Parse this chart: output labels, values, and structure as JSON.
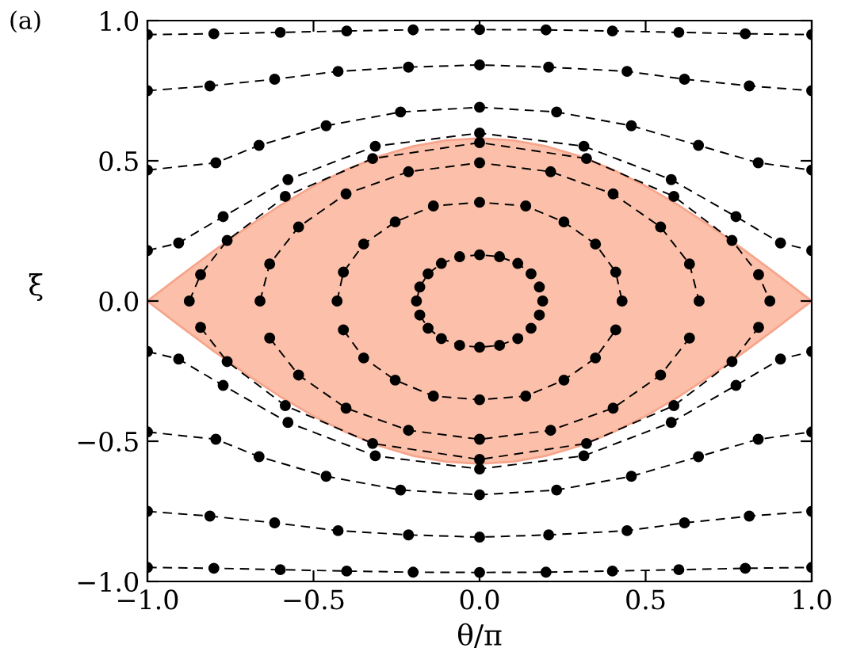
{
  "chart_data": {
    "type": "line",
    "xlabel": "θ/π",
    "ylabel": "ξ",
    "annotations": [
      "(a)"
    ],
    "xlim": [
      -1,
      1
    ],
    "ylim": [
      -1,
      1
    ],
    "xticks": [
      {
        "value": -1,
        "label": "−1.0"
      },
      {
        "value": -0.5,
        "label": "−0.5"
      },
      {
        "value": 0,
        "label": "0.0"
      },
      {
        "value": 0.5,
        "label": "0.5"
      },
      {
        "value": 1,
        "label": "1.0"
      }
    ],
    "yticks": [
      {
        "value": -1,
        "label": "−1.0"
      },
      {
        "value": -0.5,
        "label": "−0.5"
      },
      {
        "value": 0,
        "label": "0.0"
      },
      {
        "value": 0.5,
        "label": "0.5"
      },
      {
        "value": 1,
        "label": "1.0"
      }
    ],
    "grid": false,
    "legend": false,
    "marker": "circle",
    "line_style": "dashed",
    "series": [
      {
        "type": "area",
        "marker": "none",
        "line_style": "solid",
        "color": "#fcc0aa",
        "x": [
          -1,
          -0.9,
          -0.8,
          -0.7,
          -0.6,
          -0.5,
          -0.4,
          -0.3,
          -0.2,
          -0.1,
          0,
          0.1,
          0.2,
          0.3,
          0.4,
          0.5,
          0.6,
          0.7,
          0.8,
          0.9,
          1
        ],
        "values": [
          0,
          0.091,
          0.179,
          0.263,
          0.341,
          0.41,
          0.469,
          0.517,
          0.552,
          0.573,
          0.58,
          0.573,
          0.552,
          0.517,
          0.469,
          0.41,
          0.341,
          0.263,
          0.179,
          0.091,
          0
        ]
      },
      {
        "type": "area",
        "marker": "none",
        "line_style": "solid",
        "color": "#fcc0aa",
        "x": [
          -1,
          -0.9,
          -0.8,
          -0.7,
          -0.6,
          -0.5,
          -0.4,
          -0.3,
          -0.2,
          -0.1,
          0,
          0.1,
          0.2,
          0.3,
          0.4,
          0.5,
          0.6,
          0.7,
          0.8,
          0.9,
          1
        ],
        "values": [
          0,
          -0.091,
          -0.179,
          -0.263,
          -0.341,
          -0.41,
          -0.469,
          -0.517,
          -0.552,
          -0.573,
          -0.58,
          -0.573,
          -0.552,
          -0.517,
          -0.469,
          -0.41,
          -0.341,
          -0.263,
          -0.179,
          -0.091,
          0
        ]
      },
      {
        "color": "#000000",
        "x": [
          -1,
          -0.8,
          -0.6,
          -0.4,
          -0.2,
          0,
          0.2,
          0.4,
          0.6,
          0.8,
          1
        ],
        "values": [
          0.95,
          0.953,
          0.958,
          0.963,
          0.967,
          0.968,
          0.967,
          0.963,
          0.958,
          0.953,
          0.95
        ]
      },
      {
        "color": "#000000",
        "x": [
          -1,
          -0.812,
          -0.617,
          -0.426,
          -0.214,
          0,
          0.208,
          0.444,
          0.617,
          0.812,
          1
        ],
        "values": [
          0.75,
          0.767,
          0.791,
          0.819,
          0.834,
          0.842,
          0.834,
          0.819,
          0.791,
          0.767,
          0.75
        ]
      },
      {
        "color": "#000000",
        "x": [
          -1,
          -0.794,
          -0.664,
          -0.462,
          -0.238,
          0,
          0.232,
          0.457,
          0.659,
          0.839,
          1
        ],
        "values": [
          0.467,
          0.493,
          0.555,
          0.625,
          0.674,
          0.691,
          0.674,
          0.625,
          0.555,
          0.493,
          0.467
        ]
      },
      {
        "color": "#000000",
        "x": [
          -1,
          -0.906,
          -0.772,
          -0.577,
          -0.314,
          0,
          0.314,
          0.577,
          0.772,
          0.906,
          1
        ],
        "values": [
          0.18,
          0.207,
          0.301,
          0.433,
          0.552,
          0.599,
          0.552,
          0.433,
          0.301,
          0.207,
          0.18
        ]
      },
      {
        "color": "#000000",
        "x": [
          -1,
          -0.906,
          -0.772,
          -0.577,
          -0.314,
          0,
          0.314,
          0.577,
          0.772,
          0.906,
          1
        ],
        "values": [
          -0.18,
          -0.207,
          -0.301,
          -0.433,
          -0.552,
          -0.599,
          -0.552,
          -0.433,
          -0.301,
          -0.207,
          -0.18
        ]
      },
      {
        "color": "#000000",
        "x": [
          -1,
          -0.794,
          -0.664,
          -0.462,
          -0.238,
          0,
          0.232,
          0.457,
          0.659,
          0.839,
          1
        ],
        "values": [
          -0.467,
          -0.493,
          -0.555,
          -0.625,
          -0.674,
          -0.691,
          -0.674,
          -0.625,
          -0.555,
          -0.493,
          -0.467
        ]
      },
      {
        "color": "#000000",
        "x": [
          -1,
          -0.812,
          -0.617,
          -0.426,
          -0.214,
          0,
          0.208,
          0.444,
          0.617,
          0.812,
          1
        ],
        "values": [
          -0.75,
          -0.767,
          -0.791,
          -0.819,
          -0.834,
          -0.842,
          -0.834,
          -0.819,
          -0.791,
          -0.767,
          -0.75
        ]
      },
      {
        "color": "#000000",
        "x": [
          -1,
          -0.8,
          -0.6,
          -0.4,
          -0.2,
          0,
          0.2,
          0.4,
          0.6,
          0.8,
          1
        ],
        "values": [
          -0.95,
          -0.953,
          -0.958,
          -0.963,
          -0.967,
          -0.968,
          -0.967,
          -0.963,
          -0.958,
          -0.953,
          -0.95
        ]
      },
      {
        "color": "#000000",
        "x": [
          -0.874,
          -0.84,
          -0.76,
          -0.585,
          -0.322,
          0,
          0.322,
          0.585,
          0.76,
          0.84,
          0.874
        ],
        "values": [
          0,
          0.094,
          0.216,
          0.373,
          0.508,
          0.565,
          0.508,
          0.373,
          0.216,
          0.094,
          0
        ]
      },
      {
        "color": "#000000",
        "x": [
          -0.84,
          -0.76,
          -0.585,
          -0.322,
          0,
          0.322,
          0.585,
          0.76,
          0.84
        ],
        "values": [
          -0.094,
          -0.216,
          -0.373,
          -0.508,
          -0.565,
          -0.508,
          -0.373,
          -0.216,
          -0.094
        ]
      },
      {
        "color": "#000000",
        "x": [
          -0.661,
          -0.632,
          -0.545,
          -0.402,
          -0.214,
          0,
          0.214,
          0.402,
          0.545,
          0.632,
          0.661
        ],
        "values": [
          0,
          0.132,
          0.264,
          0.382,
          0.461,
          0.493,
          0.461,
          0.382,
          0.264,
          0.132,
          0
        ]
      },
      {
        "color": "#000000",
        "x": [
          -0.632,
          -0.545,
          -0.402,
          -0.214,
          0,
          0.214,
          0.402,
          0.545,
          0.632
        ],
        "values": [
          -0.132,
          -0.264,
          -0.382,
          -0.461,
          -0.493,
          -0.461,
          -0.382,
          -0.264,
          -0.132
        ]
      },
      {
        "color": "#000000",
        "x": [
          -0.429,
          -0.41,
          -0.349,
          -0.254,
          -0.139,
          0,
          0.139,
          0.254,
          0.349,
          0.41,
          0.429
        ],
        "values": [
          0,
          0.103,
          0.203,
          0.282,
          0.339,
          0.352,
          0.339,
          0.282,
          0.203,
          0.103,
          0
        ]
      },
      {
        "color": "#000000",
        "x": [
          -0.41,
          -0.349,
          -0.254,
          -0.139,
          0,
          0.139,
          0.254,
          0.349,
          0.41
        ],
        "values": [
          -0.103,
          -0.203,
          -0.282,
          -0.339,
          -0.352,
          -0.339,
          -0.282,
          -0.203,
          -0.103
        ]
      },
      {
        "color": "#000000",
        "x": [
          -0.19,
          -0.18,
          -0.155,
          -0.115,
          -0.06,
          0,
          0.06,
          0.115,
          0.155,
          0.18,
          0.19
        ],
        "values": [
          0,
          0.05,
          0.097,
          0.134,
          0.158,
          0.165,
          0.158,
          0.134,
          0.097,
          0.05,
          0
        ]
      },
      {
        "color": "#000000",
        "x": [
          -0.18,
          -0.155,
          -0.115,
          -0.06,
          0,
          0.06,
          0.115,
          0.155,
          0.18
        ],
        "values": [
          -0.05,
          -0.097,
          -0.134,
          -0.158,
          -0.165,
          -0.158,
          -0.134,
          -0.097,
          -0.05
        ]
      }
    ]
  }
}
